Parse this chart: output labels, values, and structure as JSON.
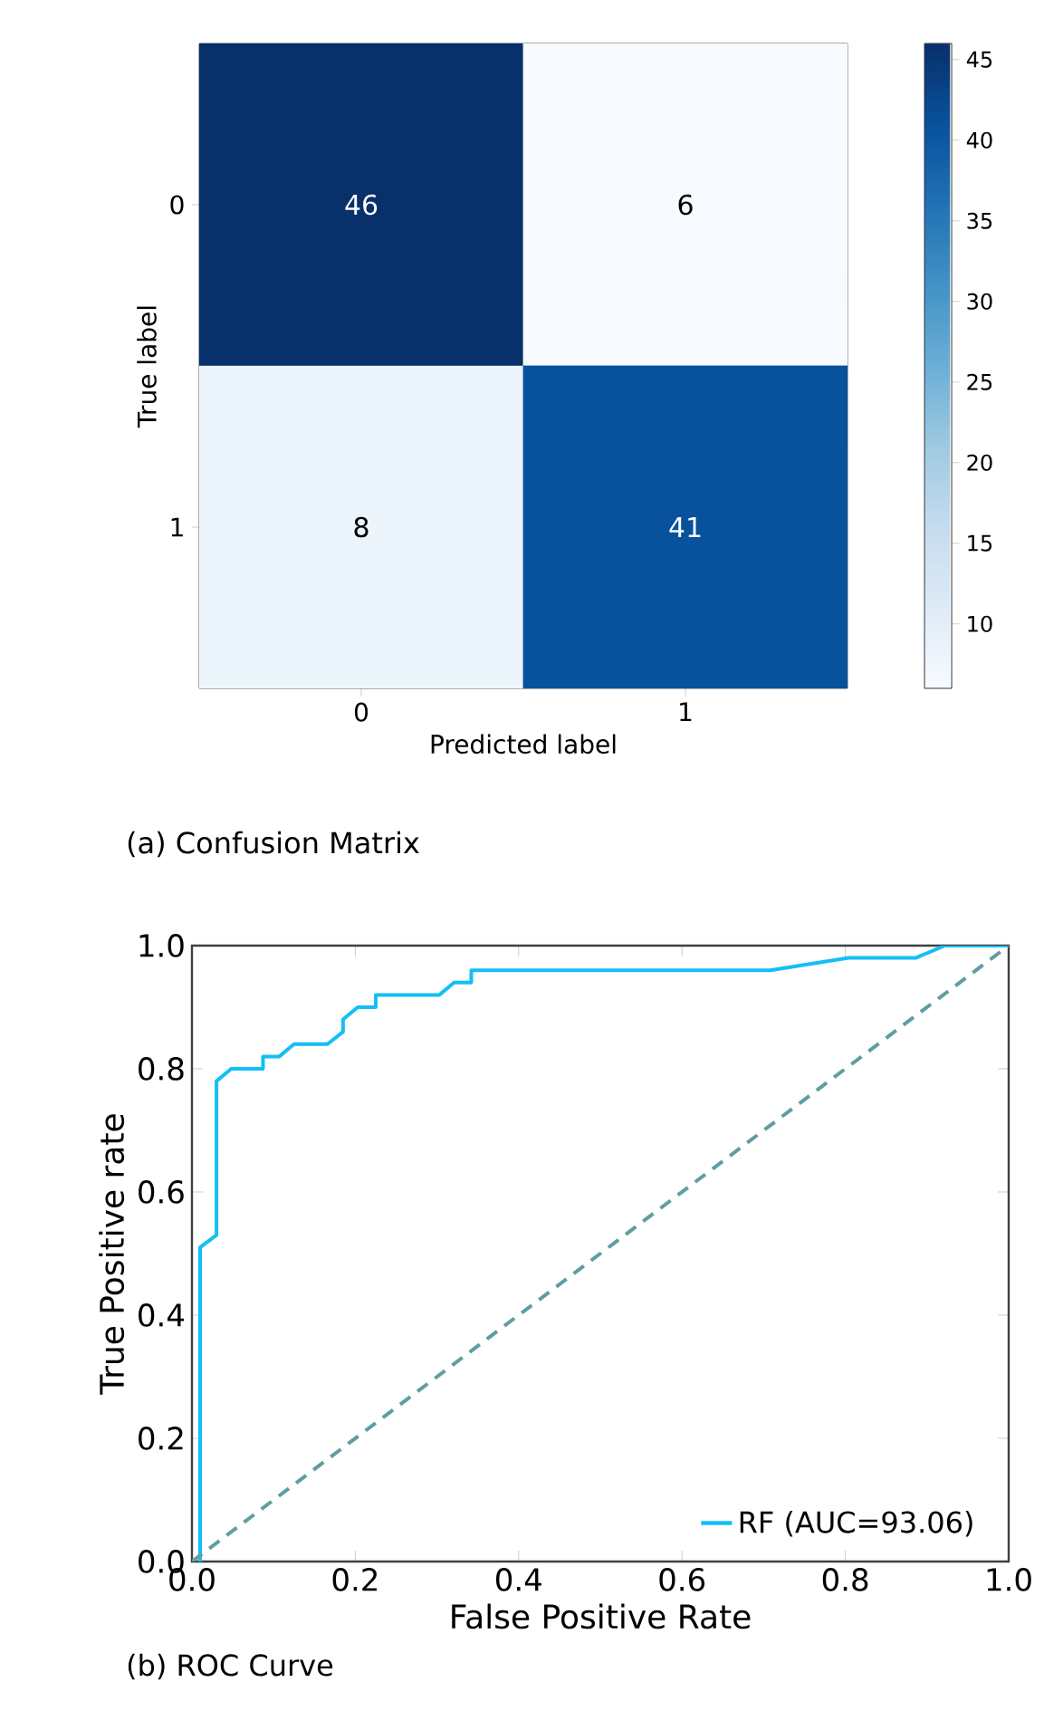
{
  "chart_data": [
    {
      "type": "heatmap",
      "categories": [
        "0",
        "1"
      ],
      "y_categories": [
        "0",
        "1"
      ],
      "cells": [
        [
          46,
          6
        ],
        [
          8,
          41
        ]
      ],
      "clim": [
        6,
        46
      ],
      "cticks": [
        10,
        15,
        20,
        25,
        30,
        35,
        40,
        45
      ],
      "data_labels": true,
      "xlabel": "Predicted label",
      "ylabel": "True label",
      "annotations": [
        "(a)  Confusion Matrix"
      ]
    },
    {
      "type": "line",
      "xlim": [
        0,
        1
      ],
      "ylim": [
        0,
        1
      ],
      "xticks": [
        {
          "value": 0,
          "label": "0.0"
        },
        {
          "value": 0.2,
          "label": "0.2"
        },
        {
          "value": 0.4,
          "label": "0.4"
        },
        {
          "value": 0.6,
          "label": "0.6"
        },
        {
          "value": 0.8,
          "label": "0.8"
        },
        {
          "value": 1,
          "label": "1.0"
        }
      ],
      "yticks": [
        {
          "value": 0,
          "label": "0.0"
        },
        {
          "value": 0.2,
          "label": "0.2"
        },
        {
          "value": 0.4,
          "label": "0.4"
        },
        {
          "value": 0.6,
          "label": "0.6"
        },
        {
          "value": 0.8,
          "label": "0.8"
        },
        {
          "value": 1,
          "label": "1.0"
        }
      ],
      "xlabel": "False Positive Rate",
      "ylabel": "True Positive rate",
      "legend": "bottom right",
      "series": [
        {
          "name": "RF (AUC=93.06)",
          "color": "#14bff5",
          "x": [
            0.01,
            0.01,
            0.03,
            0.03,
            0.048,
            0.087,
            0.087,
            0.107,
            0.125,
            0.166,
            0.185,
            0.185,
            0.203,
            0.225,
            0.225,
            0.303,
            0.321,
            0.342,
            0.342,
            0.708,
            0.804,
            0.886,
            0.922,
            1.0
          ],
          "values": [
            0,
            0.51,
            0.53,
            0.78,
            0.8,
            0.8,
            0.82,
            0.82,
            0.84,
            0.84,
            0.86,
            0.88,
            0.9,
            0.9,
            0.92,
            0.92,
            0.94,
            0.94,
            0.96,
            0.96,
            0.98,
            0.98,
            1.0,
            1.0
          ]
        },
        {
          "color": "#5f9ea0",
          "line_style": "dashed",
          "x": [
            0,
            1
          ],
          "values": [
            0,
            1
          ]
        }
      ],
      "annotations": [
        "(b) ROC Curve"
      ]
    }
  ]
}
